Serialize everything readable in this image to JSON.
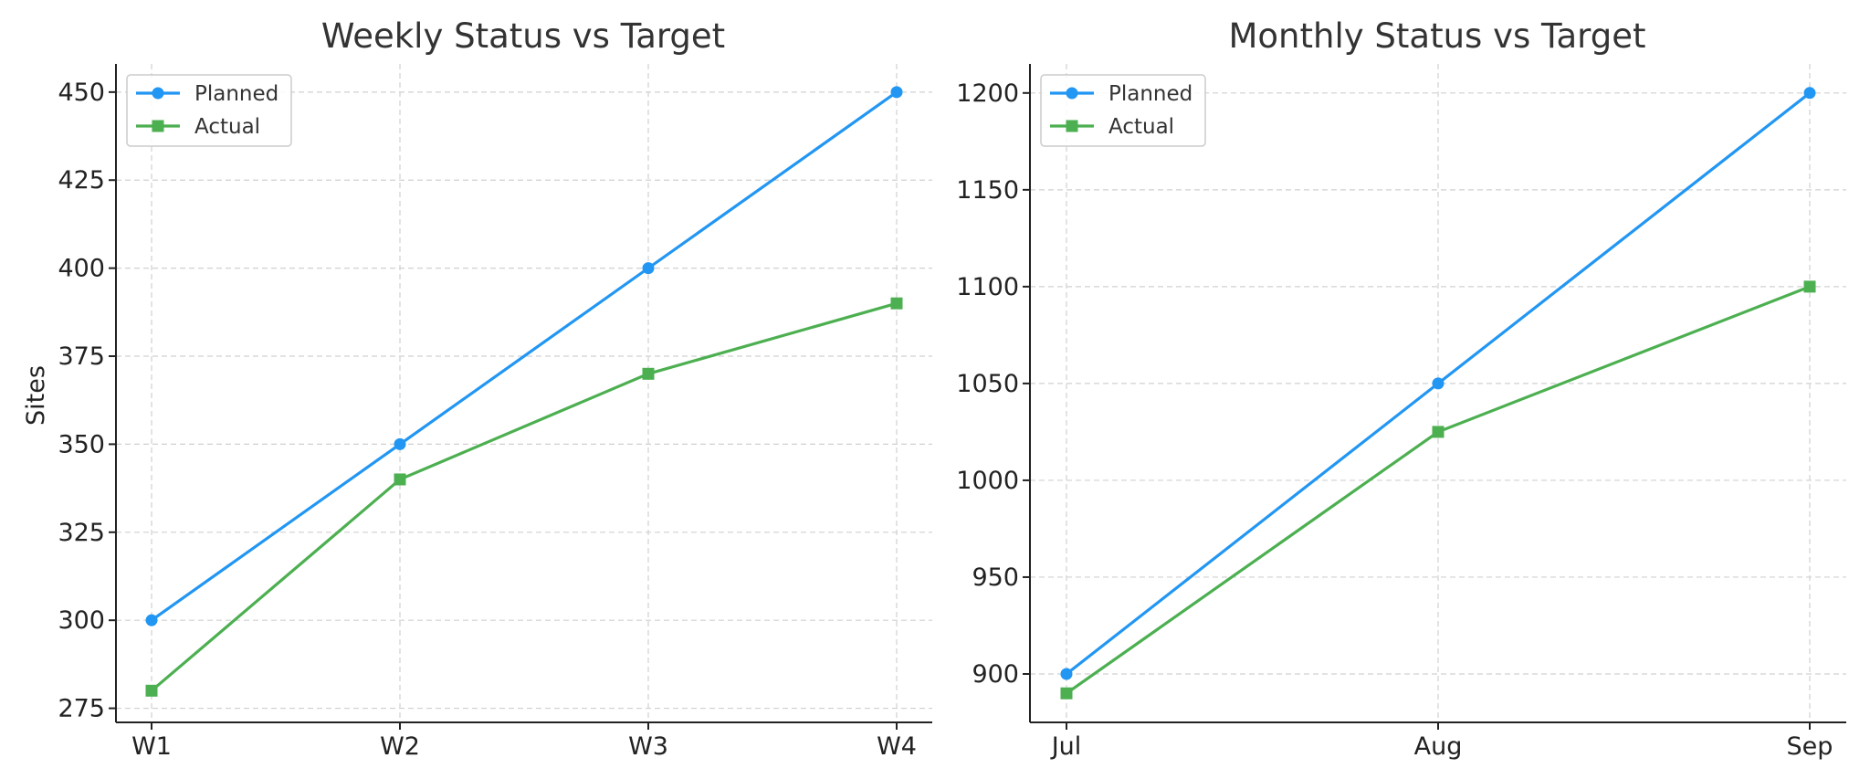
{
  "colors": {
    "planned": "#2196F3",
    "actual": "#4CAF50"
  },
  "chart_data": [
    {
      "type": "line",
      "title": "Weekly Status vs Target",
      "xlabel": "",
      "ylabel": "Sites",
      "categories": [
        "W1",
        "W2",
        "W3",
        "W4"
      ],
      "series": [
        {
          "name": "Planned",
          "values": [
            300,
            350,
            400,
            450
          ],
          "marker": "circle"
        },
        {
          "name": "Actual",
          "values": [
            280,
            340,
            370,
            390
          ],
          "marker": "square"
        }
      ],
      "ylim": [
        271,
        458
      ],
      "yticks": [
        275,
        300,
        325,
        350,
        375,
        400,
        425,
        450
      ],
      "grid": true,
      "legend": "top-left"
    },
    {
      "type": "line",
      "title": "Monthly Status vs Target",
      "xlabel": "",
      "ylabel": "",
      "categories": [
        "Jul",
        "Aug",
        "Sep"
      ],
      "series": [
        {
          "name": "Planned",
          "values": [
            900,
            1050,
            1200
          ],
          "marker": "circle"
        },
        {
          "name": "Actual",
          "values": [
            890,
            1025,
            1100
          ],
          "marker": "square"
        }
      ],
      "ylim": [
        875,
        1215
      ],
      "yticks": [
        900,
        950,
        1000,
        1050,
        1100,
        1150,
        1200
      ],
      "grid": true,
      "legend": "top-left"
    }
  ]
}
